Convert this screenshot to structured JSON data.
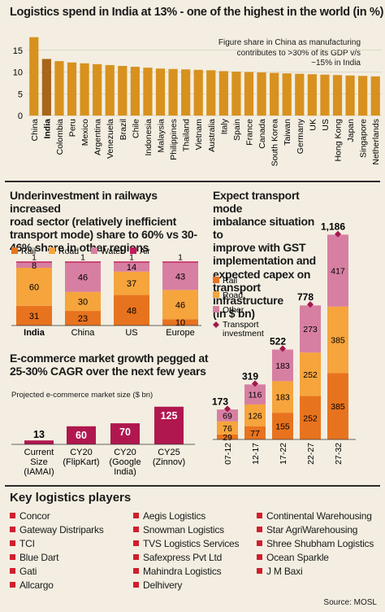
{
  "colors": {
    "rail": "#e8731e",
    "road": "#f6a43c",
    "water": "#d77fa2",
    "air": "#c21a5b",
    "ecomm": "#b0174f",
    "bar1": "#d8911e",
    "india_highlight": "#a8661a",
    "transport_marker": "#a3174e"
  },
  "chart_data": [
    {
      "type": "bar",
      "title": "Logistics spend in India at 13% - one of the highest in the world (in %)",
      "annotation": "Figure share in China as manufacturing contributes to >30% of its GDP v/s ~15% in India",
      "categories": [
        "China",
        "India",
        "Colombia",
        "Peru",
        "Mexico",
        "Argentina",
        "Venezuela",
        "Brazil",
        "Chile",
        "Indonesia",
        "Malaysia",
        "Philippines",
        "Thailand",
        "Vietnam",
        "Australia",
        "Italy",
        "Spain",
        "France",
        "Canada",
        "South Korea",
        "Taiwan",
        "Germany",
        "UK",
        "US",
        "Hong Kong",
        "Japan",
        "Singapore",
        "Netherlands"
      ],
      "values": [
        18,
        13,
        12.5,
        12.2,
        12,
        11.8,
        11.6,
        11.4,
        11.2,
        11,
        10.8,
        10.7,
        10.6,
        10.5,
        10.4,
        10.2,
        10.1,
        10,
        9.9,
        9.8,
        9.7,
        9.6,
        9.5,
        9.4,
        9.3,
        9.2,
        9.1,
        9
      ],
      "yticks": [
        0,
        5,
        10,
        15
      ],
      "ylim": [
        0,
        20
      ]
    },
    {
      "type": "bar",
      "stacked": true,
      "title": "Underinvestment in railways increased road sector (relatively inefficient transport mode) share to 60% vs 30-46% share in other regions",
      "categories": [
        "India",
        "China",
        "US",
        "Europe"
      ],
      "series": [
        {
          "name": "Rail",
          "values": [
            31,
            23,
            48,
            10
          ]
        },
        {
          "name": "Road",
          "values": [
            60,
            30,
            37,
            46
          ]
        },
        {
          "name": "Water",
          "values": [
            8,
            46,
            14,
            43
          ]
        },
        {
          "name": "Air",
          "values": [
            1,
            1,
            1,
            1
          ]
        }
      ],
      "legend_position": "top-left"
    },
    {
      "type": "bar",
      "stacked": true,
      "title": "Expect transport mode imbalance situation to improve with GST implementation and expected capex on transport infrastructure (in $ bn)",
      "categories": [
        "07-12",
        "12-17",
        "17-22",
        "22-27",
        "27-32"
      ],
      "series": [
        {
          "name": "Rail",
          "values": [
            29,
            77,
            155,
            252,
            385
          ]
        },
        {
          "name": "Road",
          "values": [
            76,
            126,
            183,
            252,
            385
          ]
        },
        {
          "name": "Other",
          "values": [
            69,
            116,
            183,
            273,
            417
          ]
        },
        {
          "name": "Transport investment",
          "values": [
            173,
            319,
            522,
            778,
            1186
          ]
        }
      ],
      "legend_position": "left"
    },
    {
      "type": "bar",
      "title": "E-commerce market growth pegged at 25-30% CAGR over the next few years",
      "subtitle": "Projected e-commerce market size ($ bn)",
      "categories": [
        "Current Size (IAMAI)",
        "CY20 (FlipKart)",
        "CY20 (Google India)",
        "CY25 (Zinnov)"
      ],
      "values": [
        13,
        60,
        70,
        125
      ]
    }
  ],
  "section1": {
    "title": "Logistics spend in India at 13% - one of the highest in the world (in %)",
    "annotation_lines": [
      "Figure share in China as manufacturing",
      "contributes to >30% of its GDP v/s",
      "~15% in India"
    ]
  },
  "section2": {
    "title_lines": [
      "Underinvestment in railways increased",
      "road sector (relatively inefficient",
      "transport mode) share to 60% vs 30-",
      "46% share in other regions"
    ],
    "legend": [
      "Rail",
      "Road",
      "Water",
      "Air"
    ]
  },
  "section3": {
    "title_lines": [
      "Expect transport mode",
      "imbalance situation to",
      "improve with GST",
      "implementation and",
      "expected capex on",
      "transport infrastructure",
      "(in $ bn)"
    ],
    "legend": [
      "Rail",
      "Road",
      "Other",
      "Transport investment"
    ]
  },
  "section4": {
    "title_lines": [
      "E-commerce market growth pegged at",
      "25-30% CAGR over the next few years"
    ],
    "subtitle": "Projected e-commerce market size ($ bn)",
    "label_lines": [
      [
        "Current",
        "Size",
        "(IAMAI)"
      ],
      [
        "CY20",
        "(FlipKart)"
      ],
      [
        "CY20",
        "(Google",
        "India)"
      ],
      [
        "CY25",
        "(Zinnov)"
      ]
    ]
  },
  "players": {
    "title": "Key logistics players",
    "items": [
      "Concor",
      "Aegis Logistics",
      "Continental Warehousing",
      "Gateway Distriparks",
      "Snowman Logistics",
      "Star AgriWarehousing",
      "TCI",
      "TVS Logistics Services",
      "Shree Shubham Logistics",
      "Blue Dart",
      "Safexpress Pvt Ltd",
      "Ocean Sparkle",
      "Gati",
      "Mahindra Logistics",
      "J M Baxi",
      "Allcargo",
      "Delhivery"
    ]
  },
  "source": "Source: MOSL"
}
